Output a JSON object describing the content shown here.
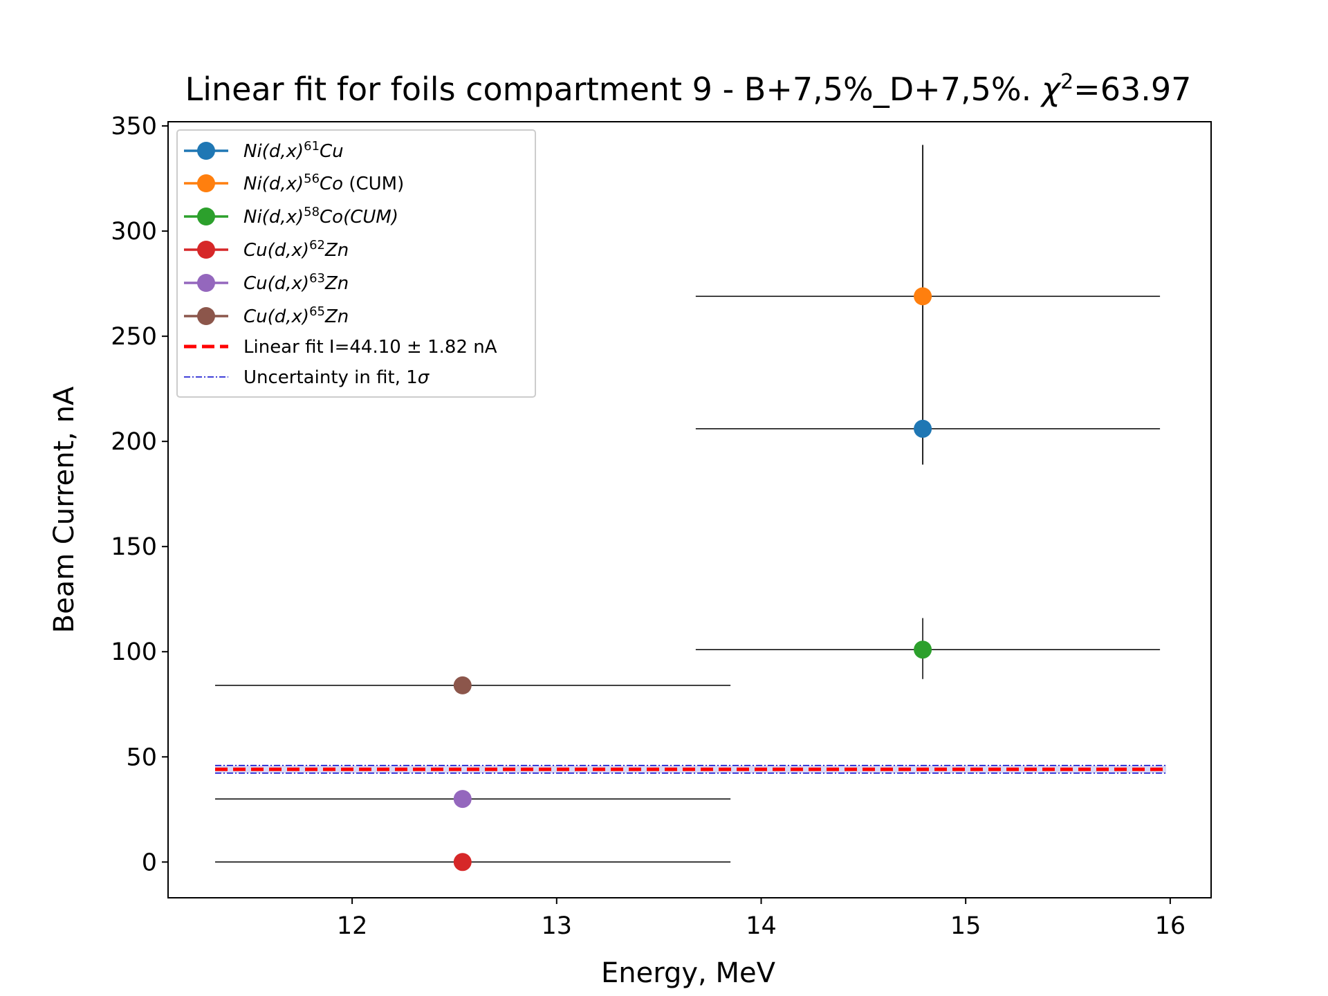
{
  "chart_data": {
    "type": "scatter",
    "title": "Linear fit for foils compartment 9 - B+7,5%_D+7,5%. χ²=63.97",
    "title_parts": {
      "main": "Linear fit for foils compartment 9 - B+7,5%_D+7,5%. ",
      "chi": "χ",
      "chi_sup": "2",
      "chi_value": "=63.97"
    },
    "xlabel": "Energy, MeV",
    "ylabel": "Beam Current, nA",
    "xlim": [
      11.1,
      16.2
    ],
    "ylim": [
      -17,
      352
    ],
    "xticks": [
      12,
      13,
      14,
      15,
      16
    ],
    "yticks": [
      0,
      50,
      100,
      150,
      200,
      250,
      300,
      350
    ],
    "legend_position": "upper-left",
    "grid": false,
    "series": [
      {
        "name": "Ni(d,x)⁶¹Cu",
        "label_parts": {
          "pre": "Ni(d,x)",
          "sup": "61",
          "post": "Cu",
          "suffix": ""
        },
        "color": "#1f77b4",
        "x": 14.79,
        "y": 206,
        "xerr": [
          13.68,
          15.95
        ],
        "yerr": [
          189,
          341
        ]
      },
      {
        "name": "Ni(d,x)⁵⁶Co (CUM)",
        "label_parts": {
          "pre": "Ni(d,x)",
          "sup": "56",
          "post": "Co",
          "suffix": " (CUM)"
        },
        "color": "#ff7f0e",
        "x": 14.79,
        "y": 269,
        "xerr": [
          13.68,
          15.95
        ],
        "yerr": [
          189,
          341
        ]
      },
      {
        "name": "Ni(d,x)⁵⁸Co(CUM)",
        "label_parts": {
          "pre": "Ni(d,x)",
          "sup": "58",
          "post": "Co(CUM)",
          "suffix": ""
        },
        "color": "#2ca02c",
        "x": 14.79,
        "y": 101,
        "xerr": [
          13.68,
          15.95
        ],
        "yerr": [
          87,
          116
        ]
      },
      {
        "name": "Cu(d,x)⁶²Zn",
        "label_parts": {
          "pre": "Cu(d,x)",
          "sup": "62",
          "post": "Zn",
          "suffix": ""
        },
        "color": "#d62728",
        "x": 12.54,
        "y": 0,
        "xerr": [
          11.33,
          13.85
        ],
        "yerr": null
      },
      {
        "name": "Cu(d,x)⁶³Zn",
        "label_parts": {
          "pre": "Cu(d,x)",
          "sup": "63",
          "post": "Zn",
          "suffix": ""
        },
        "color": "#9467bd",
        "x": 12.54,
        "y": 30,
        "xerr": [
          11.33,
          13.85
        ],
        "yerr": null
      },
      {
        "name": "Cu(d,x)⁶⁵Zn",
        "label_parts": {
          "pre": "Cu(d,x)",
          "sup": "65",
          "post": "Zn",
          "suffix": ""
        },
        "color": "#8c564b",
        "x": 12.54,
        "y": 84,
        "xerr": [
          11.33,
          13.85
        ],
        "yerr": null
      }
    ],
    "fit": {
      "name": "Linear fit I=44.10 ± 1.82 nA",
      "value": 44.1,
      "uncertainty": 1.82,
      "color": "#ff0000",
      "x": [
        11.33,
        15.98
      ]
    },
    "fit_band": {
      "name": "Uncertainty in fit, 1σ",
      "label_pre": "Uncertainty in fit, 1",
      "label_sigma": "σ",
      "color": "#0000cc",
      "fill_color": "#c8c8f0"
    }
  }
}
